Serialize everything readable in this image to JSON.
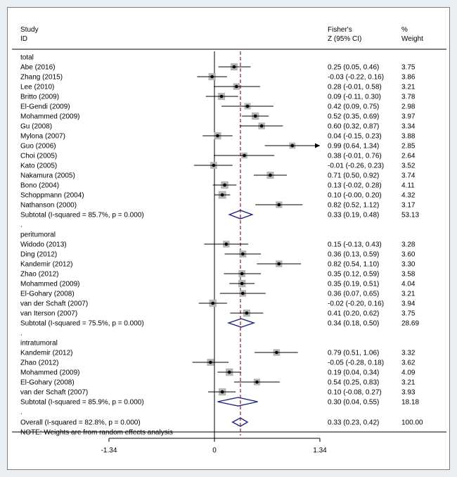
{
  "header": {
    "study_line1": "Study",
    "study_line2": "ID",
    "es_line1": "Fisher's",
    "es_line2": "Z (95% CI)",
    "weight_line1": "%",
    "weight_line2": "Weight"
  },
  "chart_data": {
    "type": "forest",
    "x_ticks": [
      -1.34,
      0,
      1.34
    ],
    "x_tick_labels": [
      "-1.34",
      "0",
      "1.34"
    ],
    "x_range": [
      -1.34,
      1.34
    ],
    "null_line": 0,
    "overall_line": 0.33,
    "groups": [
      {
        "name": "total",
        "studies": [
          {
            "id": "Abe (2016)",
            "es": 0.25,
            "lo": 0.05,
            "hi": 0.46,
            "ci_text": "0.25 (0.05, 0.46)",
            "weight": "3.75"
          },
          {
            "id": "Zhang (2015)",
            "es": -0.03,
            "lo": -0.22,
            "hi": 0.16,
            "ci_text": "-0.03 (-0.22, 0.16)",
            "weight": "3.86"
          },
          {
            "id": "Lee (2010)",
            "es": 0.28,
            "lo": -0.01,
            "hi": 0.58,
            "ci_text": "0.28 (-0.01, 0.58)",
            "weight": "3.21"
          },
          {
            "id": "Britto (2009)",
            "es": 0.09,
            "lo": -0.11,
            "hi": 0.3,
            "ci_text": "0.09 (-0.11, 0.30)",
            "weight": "3.78"
          },
          {
            "id": "El-Gendi (2009)",
            "es": 0.42,
            "lo": 0.09,
            "hi": 0.75,
            "ci_text": "0.42 (0.09, 0.75)",
            "weight": "2.98"
          },
          {
            "id": "Mohammed (2009)",
            "es": 0.52,
            "lo": 0.35,
            "hi": 0.69,
            "ci_text": "0.52 (0.35, 0.69)",
            "weight": "3.97"
          },
          {
            "id": "Gu (2008)",
            "es": 0.6,
            "lo": 0.32,
            "hi": 0.87,
            "ci_text": "0.60 (0.32, 0.87)",
            "weight": "3.34"
          },
          {
            "id": "Mylona (2007)",
            "es": 0.04,
            "lo": -0.15,
            "hi": 0.23,
            "ci_text": "0.04 (-0.15, 0.23)",
            "weight": "3.88"
          },
          {
            "id": "Guo (2006)",
            "es": 0.99,
            "lo": 0.64,
            "hi": 1.34,
            "ci_text": "0.99 (0.64, 1.34)",
            "weight": "2.85",
            "arrow": true
          },
          {
            "id": "Choi (2005)",
            "es": 0.38,
            "lo": -0.01,
            "hi": 0.76,
            "ci_text": "0.38 (-0.01, 0.76)",
            "weight": "2.64"
          },
          {
            "id": "Kato (2005)",
            "es": -0.01,
            "lo": -0.26,
            "hi": 0.23,
            "ci_text": "-0.01 (-0.26, 0.23)",
            "weight": "3.52"
          },
          {
            "id": "Nakamura (2005)",
            "es": 0.71,
            "lo": 0.5,
            "hi": 0.92,
            "ci_text": "0.71 (0.50, 0.92)",
            "weight": "3.74"
          },
          {
            "id": "Bono (2004)",
            "es": 0.13,
            "lo": -0.02,
            "hi": 0.28,
            "ci_text": "0.13 (-0.02, 0.28)",
            "weight": "4.11"
          },
          {
            "id": "Schoppmann (2004)",
            "es": 0.1,
            "lo": -0.0,
            "hi": 0.2,
            "ci_text": "0.10 (-0.00, 0.20)",
            "weight": "4.32"
          },
          {
            "id": "Nathanson (2000)",
            "es": 0.82,
            "lo": 0.52,
            "hi": 1.12,
            "ci_text": "0.82 (0.52, 1.12)",
            "weight": "3.17"
          }
        ],
        "subtotal": {
          "label": "Subtotal  (I-squared = 85.7%, p = 0.000)",
          "es": 0.33,
          "lo": 0.19,
          "hi": 0.48,
          "ci_text": "0.33 (0.19, 0.48)",
          "weight": "53.13"
        }
      },
      {
        "name": "peritumoral",
        "studies": [
          {
            "id": "Widodo (2013)",
            "es": 0.15,
            "lo": -0.13,
            "hi": 0.43,
            "ci_text": "0.15 (-0.13, 0.43)",
            "weight": "3.28"
          },
          {
            "id": "Ding (2012)",
            "es": 0.36,
            "lo": 0.13,
            "hi": 0.59,
            "ci_text": "0.36 (0.13, 0.59)",
            "weight": "3.60"
          },
          {
            "id": "Kandemir (2012)",
            "es": 0.82,
            "lo": 0.54,
            "hi": 1.1,
            "ci_text": "0.82 (0.54, 1.10)",
            "weight": "3.30"
          },
          {
            "id": "Zhao (2012)",
            "es": 0.35,
            "lo": 0.12,
            "hi": 0.59,
            "ci_text": "0.35 (0.12, 0.59)",
            "weight": "3.58"
          },
          {
            "id": "Mohammed (2009)",
            "es": 0.35,
            "lo": 0.19,
            "hi": 0.51,
            "ci_text": "0.35 (0.19, 0.51)",
            "weight": "4.04"
          },
          {
            "id": "El-Gohary (2008)",
            "es": 0.36,
            "lo": 0.07,
            "hi": 0.65,
            "ci_text": "0.36 (0.07, 0.65)",
            "weight": "3.21"
          },
          {
            "id": "van der Schaft (2007)",
            "es": -0.02,
            "lo": -0.2,
            "hi": 0.16,
            "ci_text": "-0.02 (-0.20, 0.16)",
            "weight": "3.94"
          },
          {
            "id": "van Iterson (2007)",
            "es": 0.41,
            "lo": 0.2,
            "hi": 0.62,
            "ci_text": "0.41 (0.20, 0.62)",
            "weight": "3.75"
          }
        ],
        "subtotal": {
          "label": "Subtotal  (I-squared = 75.5%, p = 0.000)",
          "es": 0.34,
          "lo": 0.18,
          "hi": 0.5,
          "ci_text": "0.34 (0.18, 0.50)",
          "weight": "28.69"
        }
      },
      {
        "name": "intratumoral",
        "studies": [
          {
            "id": "Kandemir (2012)",
            "es": 0.79,
            "lo": 0.51,
            "hi": 1.06,
            "ci_text": "0.79 (0.51, 1.06)",
            "weight": "3.32"
          },
          {
            "id": "Zhao (2012)",
            "es": -0.05,
            "lo": -0.28,
            "hi": 0.18,
            "ci_text": "-0.05 (-0.28, 0.18)",
            "weight": "3.62"
          },
          {
            "id": "Mohammed (2009)",
            "es": 0.19,
            "lo": 0.04,
            "hi": 0.34,
            "ci_text": "0.19 (0.04, 0.34)",
            "weight": "4.09"
          },
          {
            "id": "El-Gohary (2008)",
            "es": 0.54,
            "lo": 0.25,
            "hi": 0.83,
            "ci_text": "0.54 (0.25, 0.83)",
            "weight": "3.21"
          },
          {
            "id": "van der Schaft (2007)",
            "es": 0.1,
            "lo": -0.08,
            "hi": 0.27,
            "ci_text": "0.10 (-0.08, 0.27)",
            "weight": "3.93"
          }
        ],
        "subtotal": {
          "label": "Subtotal  (I-squared = 85.9%, p = 0.000)",
          "es": 0.3,
          "lo": 0.04,
          "hi": 0.55,
          "ci_text": "0.30 (0.04, 0.55)",
          "weight": "18.18"
        }
      }
    ],
    "overall": {
      "label": "Overall  (I-squared = 82.8%, p = 0.000)",
      "es": 0.33,
      "lo": 0.23,
      "hi": 0.42,
      "ci_text": "0.33 (0.23, 0.42)",
      "weight": "100.00"
    },
    "note": "NOTE: Weights are from random effects analysis"
  },
  "colors": {
    "background": "#e9eef3",
    "panel": "#ffffff",
    "diamond": "#1a237e",
    "overall_line": "#8b1a3a",
    "weight_box": "#b5b5b5",
    "axis": "#000000"
  }
}
